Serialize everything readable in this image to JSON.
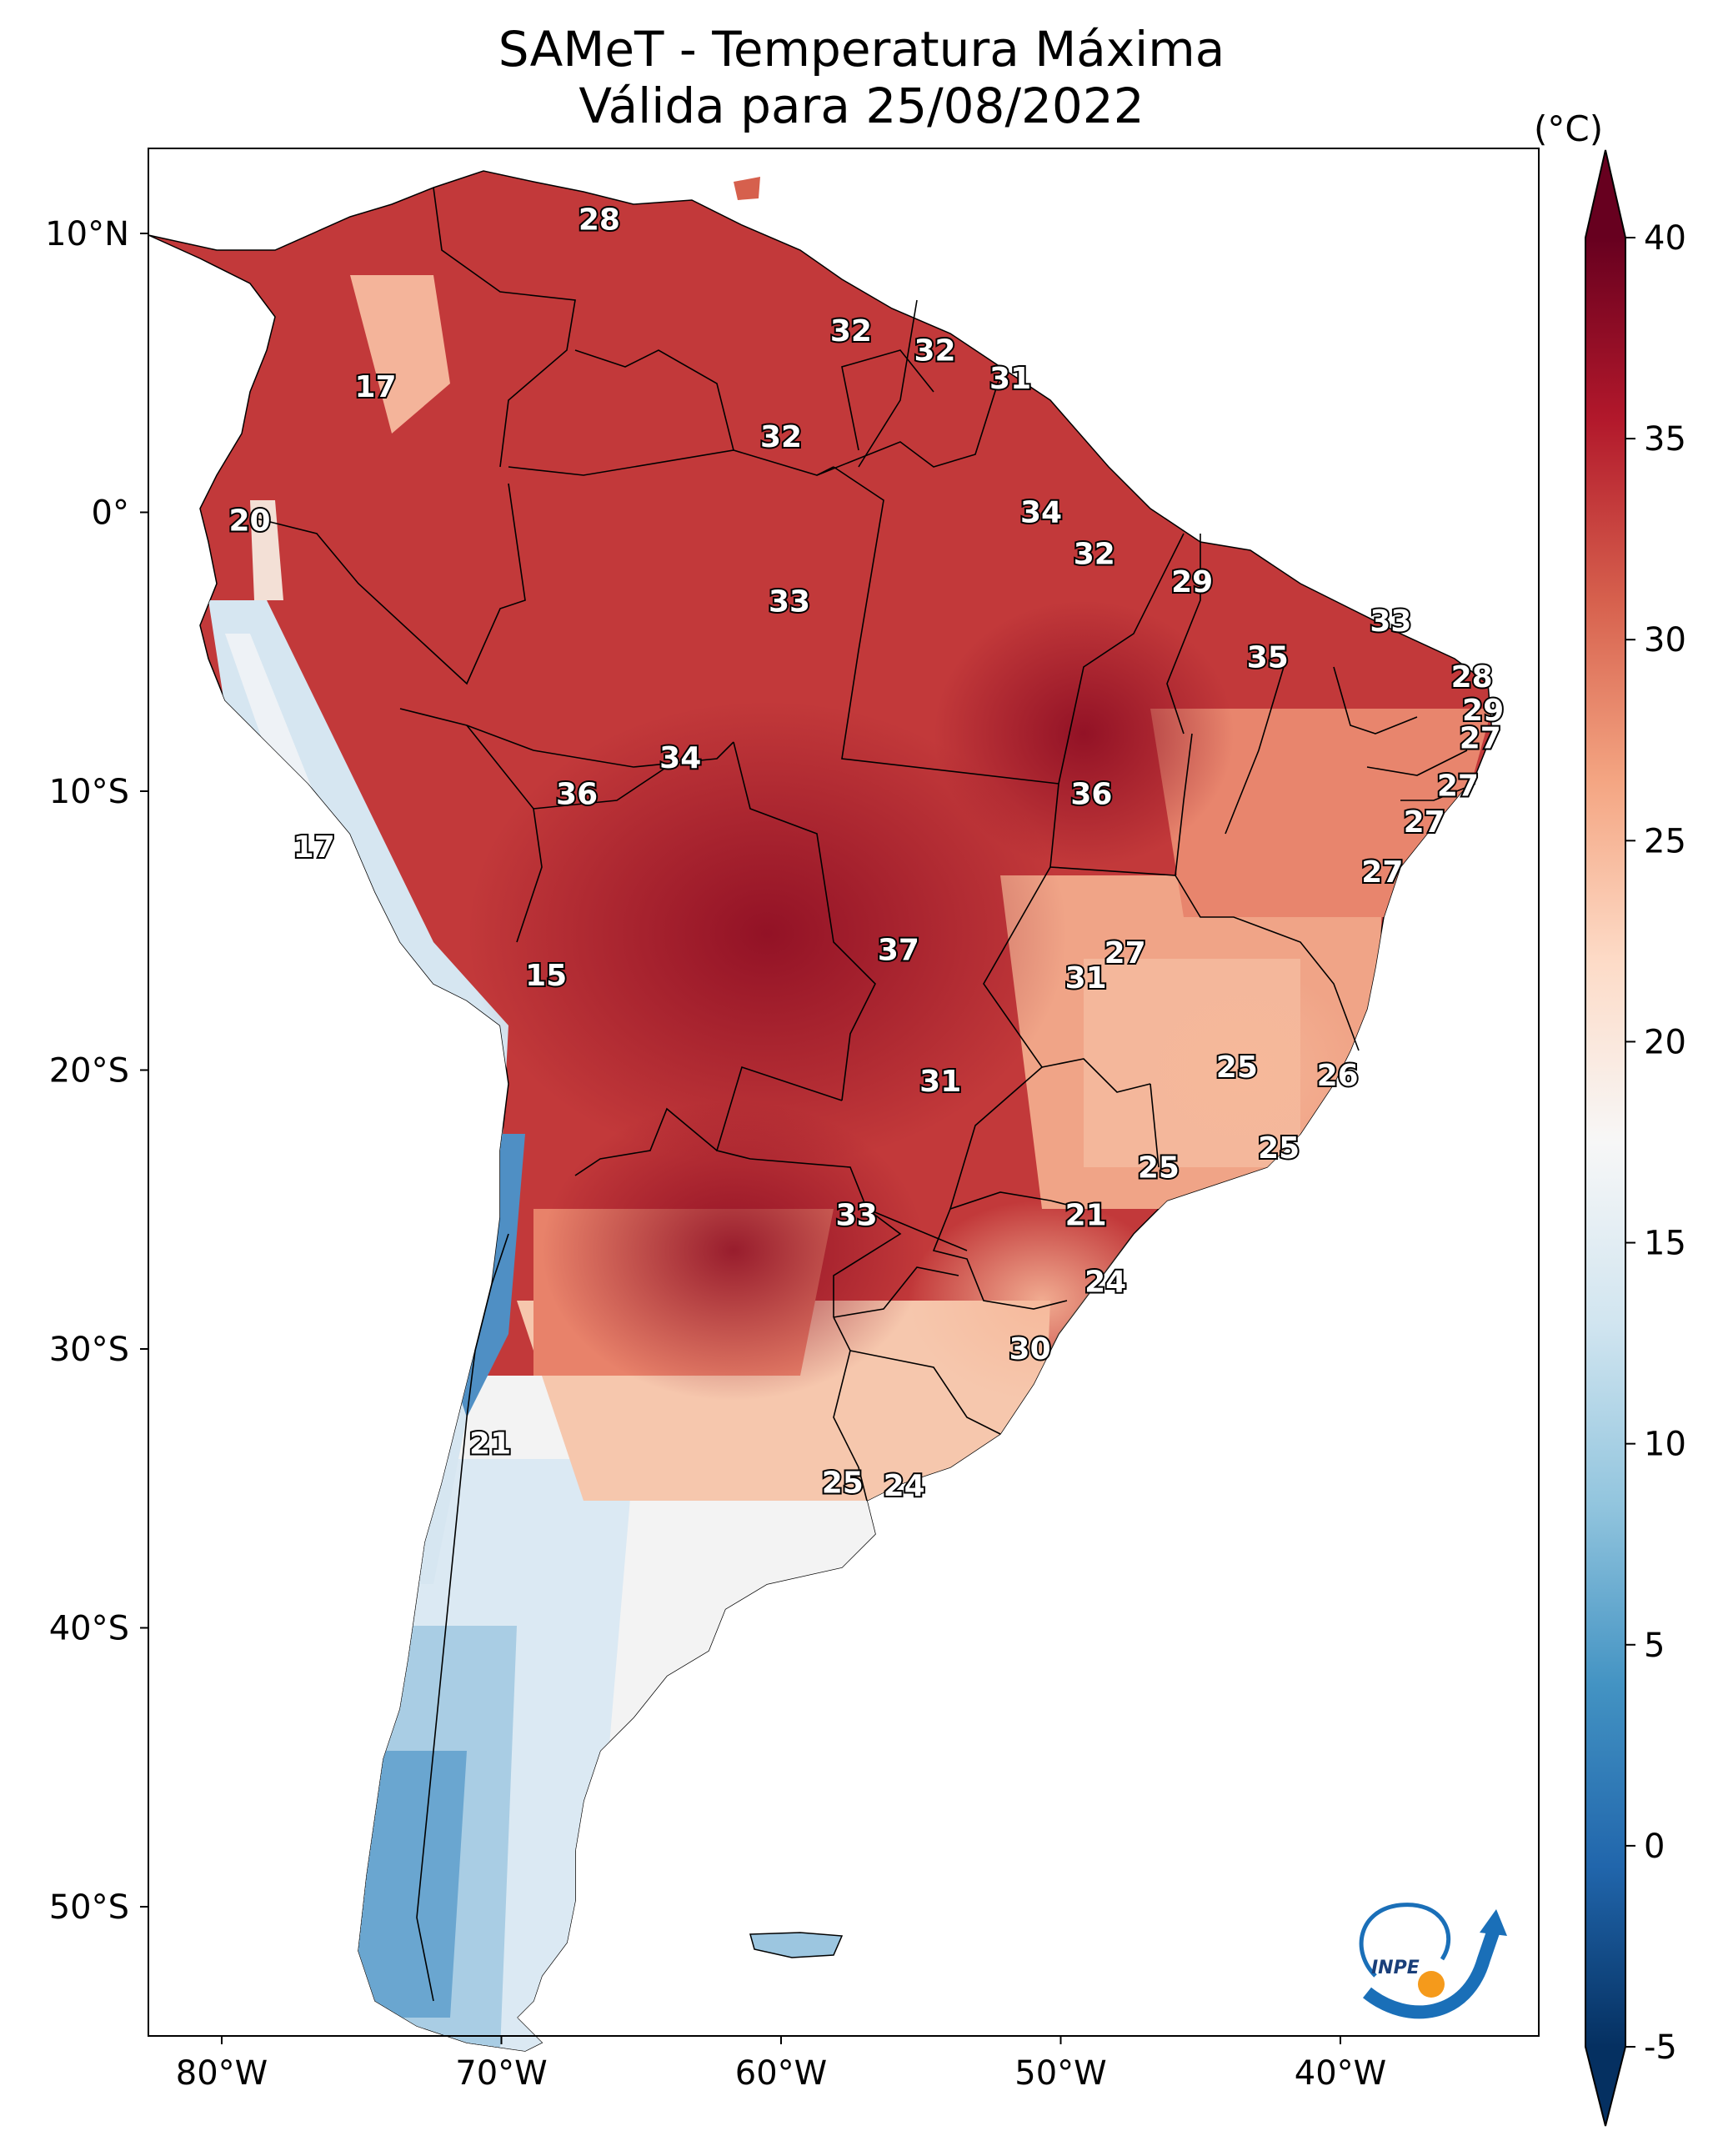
{
  "title": {
    "line1": "SAMeT - Temperatura Máxima",
    "line2": "Válida para 25/08/2022"
  },
  "axes": {
    "lat_ticks": [
      "10°N",
      "0°",
      "10°S",
      "20°S",
      "30°S",
      "40°S",
      "50°S"
    ],
    "lon_ticks": [
      "80°W",
      "70°W",
      "60°W",
      "50°W",
      "40°W"
    ]
  },
  "colorbar": {
    "unit": "(°C)",
    "min": -5,
    "max": 40,
    "ticks": [
      "40",
      "35",
      "30",
      "25",
      "20",
      "15",
      "10",
      "5",
      "0",
      "-5"
    ],
    "colors": [
      "#053061",
      "#2166ac",
      "#4393c3",
      "#92c5de",
      "#d1e5f0",
      "#f7f7f7",
      "#fddbc7",
      "#f4a582",
      "#d6604d",
      "#b2182b",
      "#67001f"
    ]
  },
  "logo": {
    "text": "INPE"
  },
  "map_labels": [
    {
      "value": "28",
      "lon": -66.5,
      "lat": 10.5
    },
    {
      "value": "17",
      "lon": -74.5,
      "lat": 4.5
    },
    {
      "value": "32",
      "lon": -57.5,
      "lat": 6.5
    },
    {
      "value": "32",
      "lon": -54.5,
      "lat": 5.8
    },
    {
      "value": "31",
      "lon": -51.8,
      "lat": 4.8
    },
    {
      "value": "32",
      "lon": -60,
      "lat": 2.7
    },
    {
      "value": "20",
      "lon": -79,
      "lat": -0.3
    },
    {
      "value": "34",
      "lon": -50.7,
      "lat": 0
    },
    {
      "value": "32",
      "lon": -48.8,
      "lat": -1.5
    },
    {
      "value": "33",
      "lon": -59.7,
      "lat": -3.2
    },
    {
      "value": "29",
      "lon": -45.3,
      "lat": -2.5
    },
    {
      "value": "33",
      "lon": -38.2,
      "lat": -3.9
    },
    {
      "value": "35",
      "lon": -42.6,
      "lat": -5.2
    },
    {
      "value": "28",
      "lon": -35.3,
      "lat": -5.9
    },
    {
      "value": "29",
      "lon": -34.9,
      "lat": -7.1
    },
    {
      "value": "27",
      "lon": -35,
      "lat": -8.1
    },
    {
      "value": "34",
      "lon": -63.6,
      "lat": -8.8
    },
    {
      "value": "36",
      "lon": -67.3,
      "lat": -10.1
    },
    {
      "value": "36",
      "lon": -48.9,
      "lat": -10.1
    },
    {
      "value": "27",
      "lon": -35.8,
      "lat": -9.8
    },
    {
      "value": "27",
      "lon": -37,
      "lat": -11.1
    },
    {
      "value": "17",
      "lon": -76.7,
      "lat": -12
    },
    {
      "value": "27",
      "lon": -38.5,
      "lat": -12.9
    },
    {
      "value": "37",
      "lon": -55.8,
      "lat": -15.7
    },
    {
      "value": "27",
      "lon": -47.7,
      "lat": -15.8
    },
    {
      "value": "31",
      "lon": -49.1,
      "lat": -16.7
    },
    {
      "value": "15",
      "lon": -68.4,
      "lat": -16.6
    },
    {
      "value": "25",
      "lon": -43.7,
      "lat": -19.9
    },
    {
      "value": "26",
      "lon": -40.1,
      "lat": -20.2
    },
    {
      "value": "31",
      "lon": -54.3,
      "lat": -20.4
    },
    {
      "value": "25",
      "lon": -42.2,
      "lat": -22.8
    },
    {
      "value": "25",
      "lon": -46.5,
      "lat": -23.5
    },
    {
      "value": "33",
      "lon": -57.3,
      "lat": -25.2
    },
    {
      "value": "21",
      "lon": -49.1,
      "lat": -25.2
    },
    {
      "value": "24",
      "lon": -48.4,
      "lat": -27.6
    },
    {
      "value": "30",
      "lon": -51.1,
      "lat": -30
    },
    {
      "value": "21",
      "lon": -70.4,
      "lat": -33.4
    },
    {
      "value": "25",
      "lon": -57.8,
      "lat": -34.8
    },
    {
      "value": "24",
      "lon": -55.6,
      "lat": -34.9
    }
  ]
}
